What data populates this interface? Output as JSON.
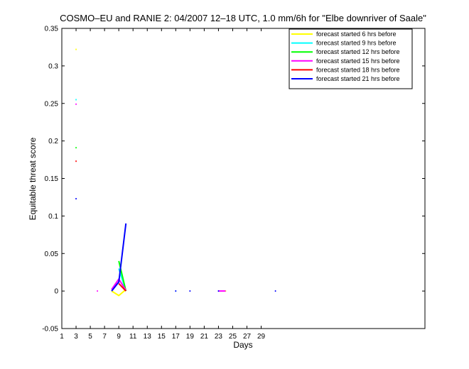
{
  "chart_data": {
    "type": "line",
    "title": "COSMO–EU and RANIE 2: 04/2007 12–18 UTC, 1.0 mm/6h for \"Elbe downriver of Saale\"",
    "xlabel": "Days",
    "ylabel": "Equitable threat score",
    "xlim": [
      1,
      52
    ],
    "ylim": [
      -0.05,
      0.35
    ],
    "xticks": [
      1,
      3,
      5,
      7,
      9,
      11,
      13,
      15,
      17,
      19,
      21,
      23,
      25,
      27,
      29
    ],
    "yticks": [
      -0.05,
      0,
      0.05,
      0.1,
      0.15,
      0.2,
      0.25,
      0.3,
      0.35
    ],
    "ytick_labels": [
      "-0.05",
      "0",
      "0.05",
      "0.1",
      "0.15",
      "0.2",
      "0.25",
      "0.3",
      "0.35"
    ],
    "grid": false,
    "legend_position": "top-right",
    "series": [
      {
        "name": "forecast started 6 hrs before",
        "color": "#ffff00",
        "segments": [
          [
            [
              3,
              0.322
            ]
          ],
          [
            [
              8,
              0.0
            ],
            [
              9,
              -0.006
            ],
            [
              10,
              0.002
            ]
          ],
          [
            [
              24,
              0.0
            ]
          ]
        ]
      },
      {
        "name": "forecast started 9 hrs before",
        "color": "#00ffff",
        "segments": [
          [
            [
              3,
              0.255
            ]
          ],
          [
            [
              9,
              0.03
            ],
            [
              10,
              0.0
            ]
          ],
          [
            [
              17,
              0.0
            ]
          ]
        ]
      },
      {
        "name": "forecast started 12 hrs before",
        "color": "#00ff00",
        "segments": [
          [
            [
              3,
              0.191
            ]
          ],
          [
            [
              9,
              0.04
            ],
            [
              10,
              0.0
            ]
          ]
        ]
      },
      {
        "name": "forecast started 15 hrs before",
        "color": "#ff00ff",
        "segments": [
          [
            [
              3,
              0.249
            ]
          ],
          [
            [
              6,
              0.0
            ]
          ],
          [
            [
              8,
              0.002
            ],
            [
              9,
              0.016
            ],
            [
              10,
              0.001
            ]
          ],
          [
            [
              23,
              0.0
            ],
            [
              24,
              0.0
            ]
          ]
        ]
      },
      {
        "name": "forecast started 18 hrs before",
        "color": "#ff0000",
        "segments": [
          [
            [
              3,
              0.173
            ]
          ],
          [
            [
              9,
              0.01
            ],
            [
              10,
              0.0
            ]
          ]
        ]
      },
      {
        "name": "forecast started 21 hrs before",
        "color": "#0000ff",
        "segments": [
          [
            [
              3,
              0.123
            ]
          ],
          [
            [
              8,
              0.0
            ],
            [
              9,
              0.012
            ],
            [
              10,
              0.09
            ]
          ],
          [
            [
              17,
              0.0
            ]
          ],
          [
            [
              19,
              0.0
            ]
          ],
          [
            [
              23,
              0.0
            ]
          ],
          [
            [
              31,
              0.0
            ]
          ]
        ]
      }
    ]
  }
}
